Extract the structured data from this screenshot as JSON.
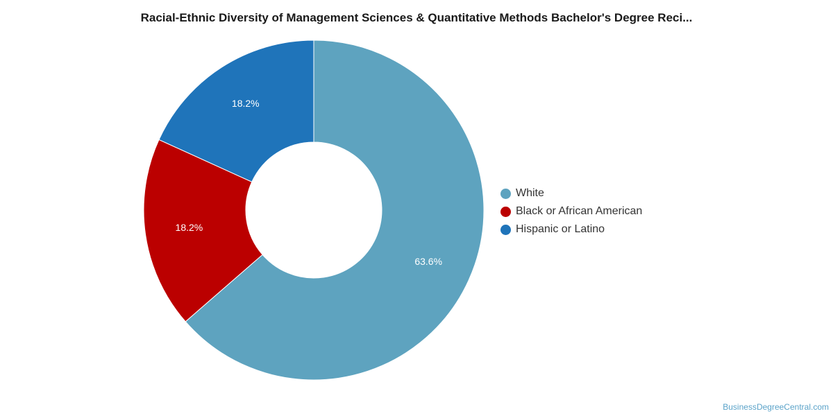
{
  "chart_data": {
    "type": "pie",
    "variant": "donut",
    "title": "Racial-Ethnic Diversity of Management Sciences & Quantitative Methods Bachelor's Degree Reci...",
    "categories": [
      "White",
      "Black or African American",
      "Hispanic or Latino"
    ],
    "values": [
      63.6,
      18.2,
      18.2
    ],
    "value_labels": [
      "63.6%",
      "18.2%",
      "18.2%"
    ],
    "colors": [
      "#5ea3bf",
      "#bb0000",
      "#1f74ba"
    ],
    "legend_position": "right"
  },
  "source": "BusinessDegreeCentral.com"
}
